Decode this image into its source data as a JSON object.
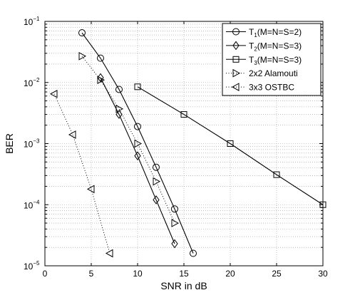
{
  "chart_data": {
    "type": "line",
    "xlabel": "SNR in dB",
    "ylabel": "BER",
    "xlim": [
      0,
      30
    ],
    "ylim": [
      1e-05,
      0.1
    ],
    "yscale": "log",
    "grid": true,
    "legend_placement": "top-right",
    "x_ticks": [
      0,
      5,
      10,
      15,
      20,
      25,
      30
    ],
    "x_tick_labels": [
      "0",
      "5",
      "10",
      "15",
      "20",
      "25",
      "30"
    ],
    "y_ticks": [
      {
        "value": 0.1,
        "base": "10",
        "exp": "−1"
      },
      {
        "value": 0.01,
        "base": "10",
        "exp": "−2"
      },
      {
        "value": 0.001,
        "base": "10",
        "exp": "−3"
      },
      {
        "value": 0.0001,
        "base": "10",
        "exp": "−4"
      },
      {
        "value": 1e-05,
        "base": "10",
        "exp": "−5"
      }
    ],
    "series": [
      {
        "name": "T1(M=N=S=2)",
        "label_main": "T",
        "label_sub": "1",
        "label_rest": "(M=N=S=2)",
        "marker": "circle",
        "line": "solid",
        "x": [
          4,
          6,
          8,
          10,
          12,
          14,
          16
        ],
        "y": [
          0.065,
          0.025,
          0.0077,
          0.0019,
          0.00041,
          8.5e-05,
          1.6e-05
        ]
      },
      {
        "name": "T2(M=N=S=3)",
        "label_main": "T",
        "label_sub": "2",
        "label_rest": "(M=N=S=3)",
        "marker": "diamond",
        "line": "solid",
        "x": [
          6,
          8,
          10,
          12,
          14
        ],
        "y": [
          0.012,
          0.003,
          0.00063,
          0.00012,
          2.3e-05
        ]
      },
      {
        "name": "T3(M=N=S=3)",
        "label_main": "T",
        "label_sub": "3",
        "label_rest": "(M=N=S=3)",
        "marker": "square",
        "line": "solid",
        "x": [
          10,
          15,
          20,
          25,
          30
        ],
        "y": [
          0.0085,
          0.003,
          0.001,
          0.00031,
          0.0001
        ]
      },
      {
        "name": "2x2 Alamouti",
        "label_main": "2x2 Alamouti",
        "label_sub": "",
        "label_rest": "",
        "marker": "triangle-right",
        "line": "dotted",
        "x": [
          4,
          6,
          8,
          10,
          12,
          14
        ],
        "y": [
          0.027,
          0.011,
          0.0037,
          0.001,
          0.00024,
          5e-05
        ]
      },
      {
        "name": "3x3 OSTBC",
        "label_main": "3x3 OSTBC",
        "label_sub": "",
        "label_rest": "",
        "marker": "triangle-left",
        "line": "dotted",
        "x": [
          1,
          3,
          5,
          7
        ],
        "y": [
          0.0065,
          0.0014,
          0.00018,
          1.6e-05
        ]
      }
    ]
  }
}
